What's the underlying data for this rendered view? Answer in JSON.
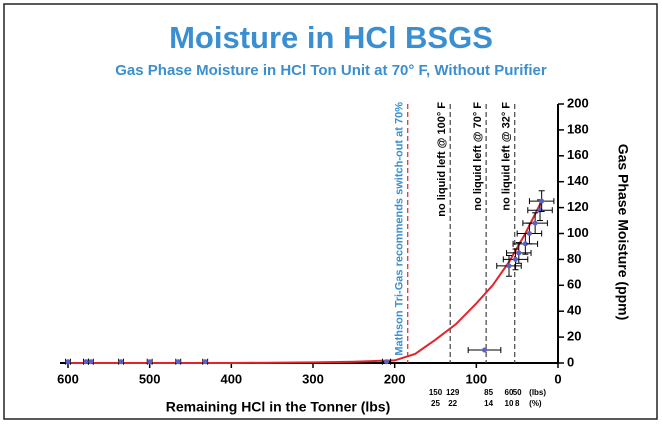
{
  "chart_data": {
    "type": "scatter",
    "title": "Moisture in HCl BSGS",
    "subtitle": "Gas Phase Moisture in HCl Ton Unit at 70° F, Without Purifier",
    "xlabel": "Remaining HCl in the Tonner (lbs)",
    "ylabel": "Gas Phase Moisture (ppm)",
    "xlim": [
      600,
      0
    ],
    "xticks": [
      600,
      500,
      400,
      300,
      200,
      100,
      0
    ],
    "ylim": [
      0,
      200
    ],
    "yticks": [
      0,
      20,
      40,
      60,
      80,
      100,
      120,
      140,
      160,
      180,
      200
    ],
    "points": {
      "color": "#5b5fc7",
      "x": [
        600,
        578,
        572,
        535,
        500,
        465,
        432,
        210,
        90,
        60,
        52,
        48,
        40,
        35,
        28,
        22,
        20
      ],
      "y": [
        1,
        1,
        1,
        1,
        1,
        1,
        1,
        1,
        10,
        75,
        80,
        85,
        92,
        100,
        108,
        118,
        125
      ],
      "xerr": [
        3,
        3,
        3,
        3,
        3,
        3,
        3,
        5,
        20,
        15,
        15,
        15,
        15,
        15,
        15,
        15,
        15
      ],
      "yerr": [
        0,
        0,
        0,
        0,
        0,
        0,
        0,
        0,
        0,
        8,
        8,
        8,
        8,
        8,
        8,
        8,
        8
      ]
    },
    "fit": {
      "color": "#e0242b",
      "x": [
        600,
        500,
        400,
        300,
        250,
        200,
        175,
        150,
        125,
        100,
        80,
        60,
        40,
        20
      ],
      "y": [
        0,
        0,
        0,
        0.5,
        1,
        2,
        7,
        18,
        30,
        46,
        60,
        78,
        100,
        125
      ]
    },
    "vlines": [
      {
        "x": 184,
        "label": "Mathson Tri-Gas recommends switch-out at 70%",
        "color": "#e0242b",
        "text_color": "#3b8fd0"
      },
      {
        "x": 132,
        "label": "no liquid left @ 100° F",
        "color": "#444444",
        "text_color": "#000000"
      },
      {
        "x": 88,
        "label": "no liquid left @ 70° F",
        "color": "#444444",
        "text_color": "#000000"
      },
      {
        "x": 53,
        "label": "no liquid left @ 32° F",
        "color": "#444444",
        "text_color": "#000000"
      }
    ],
    "lbs_row": {
      "x": [
        150,
        129,
        85,
        60,
        50
      ],
      "unit": "(lbs)"
    },
    "pct_row": {
      "values": [
        25,
        22,
        14,
        10,
        8
      ],
      "unit": "(%)"
    }
  }
}
